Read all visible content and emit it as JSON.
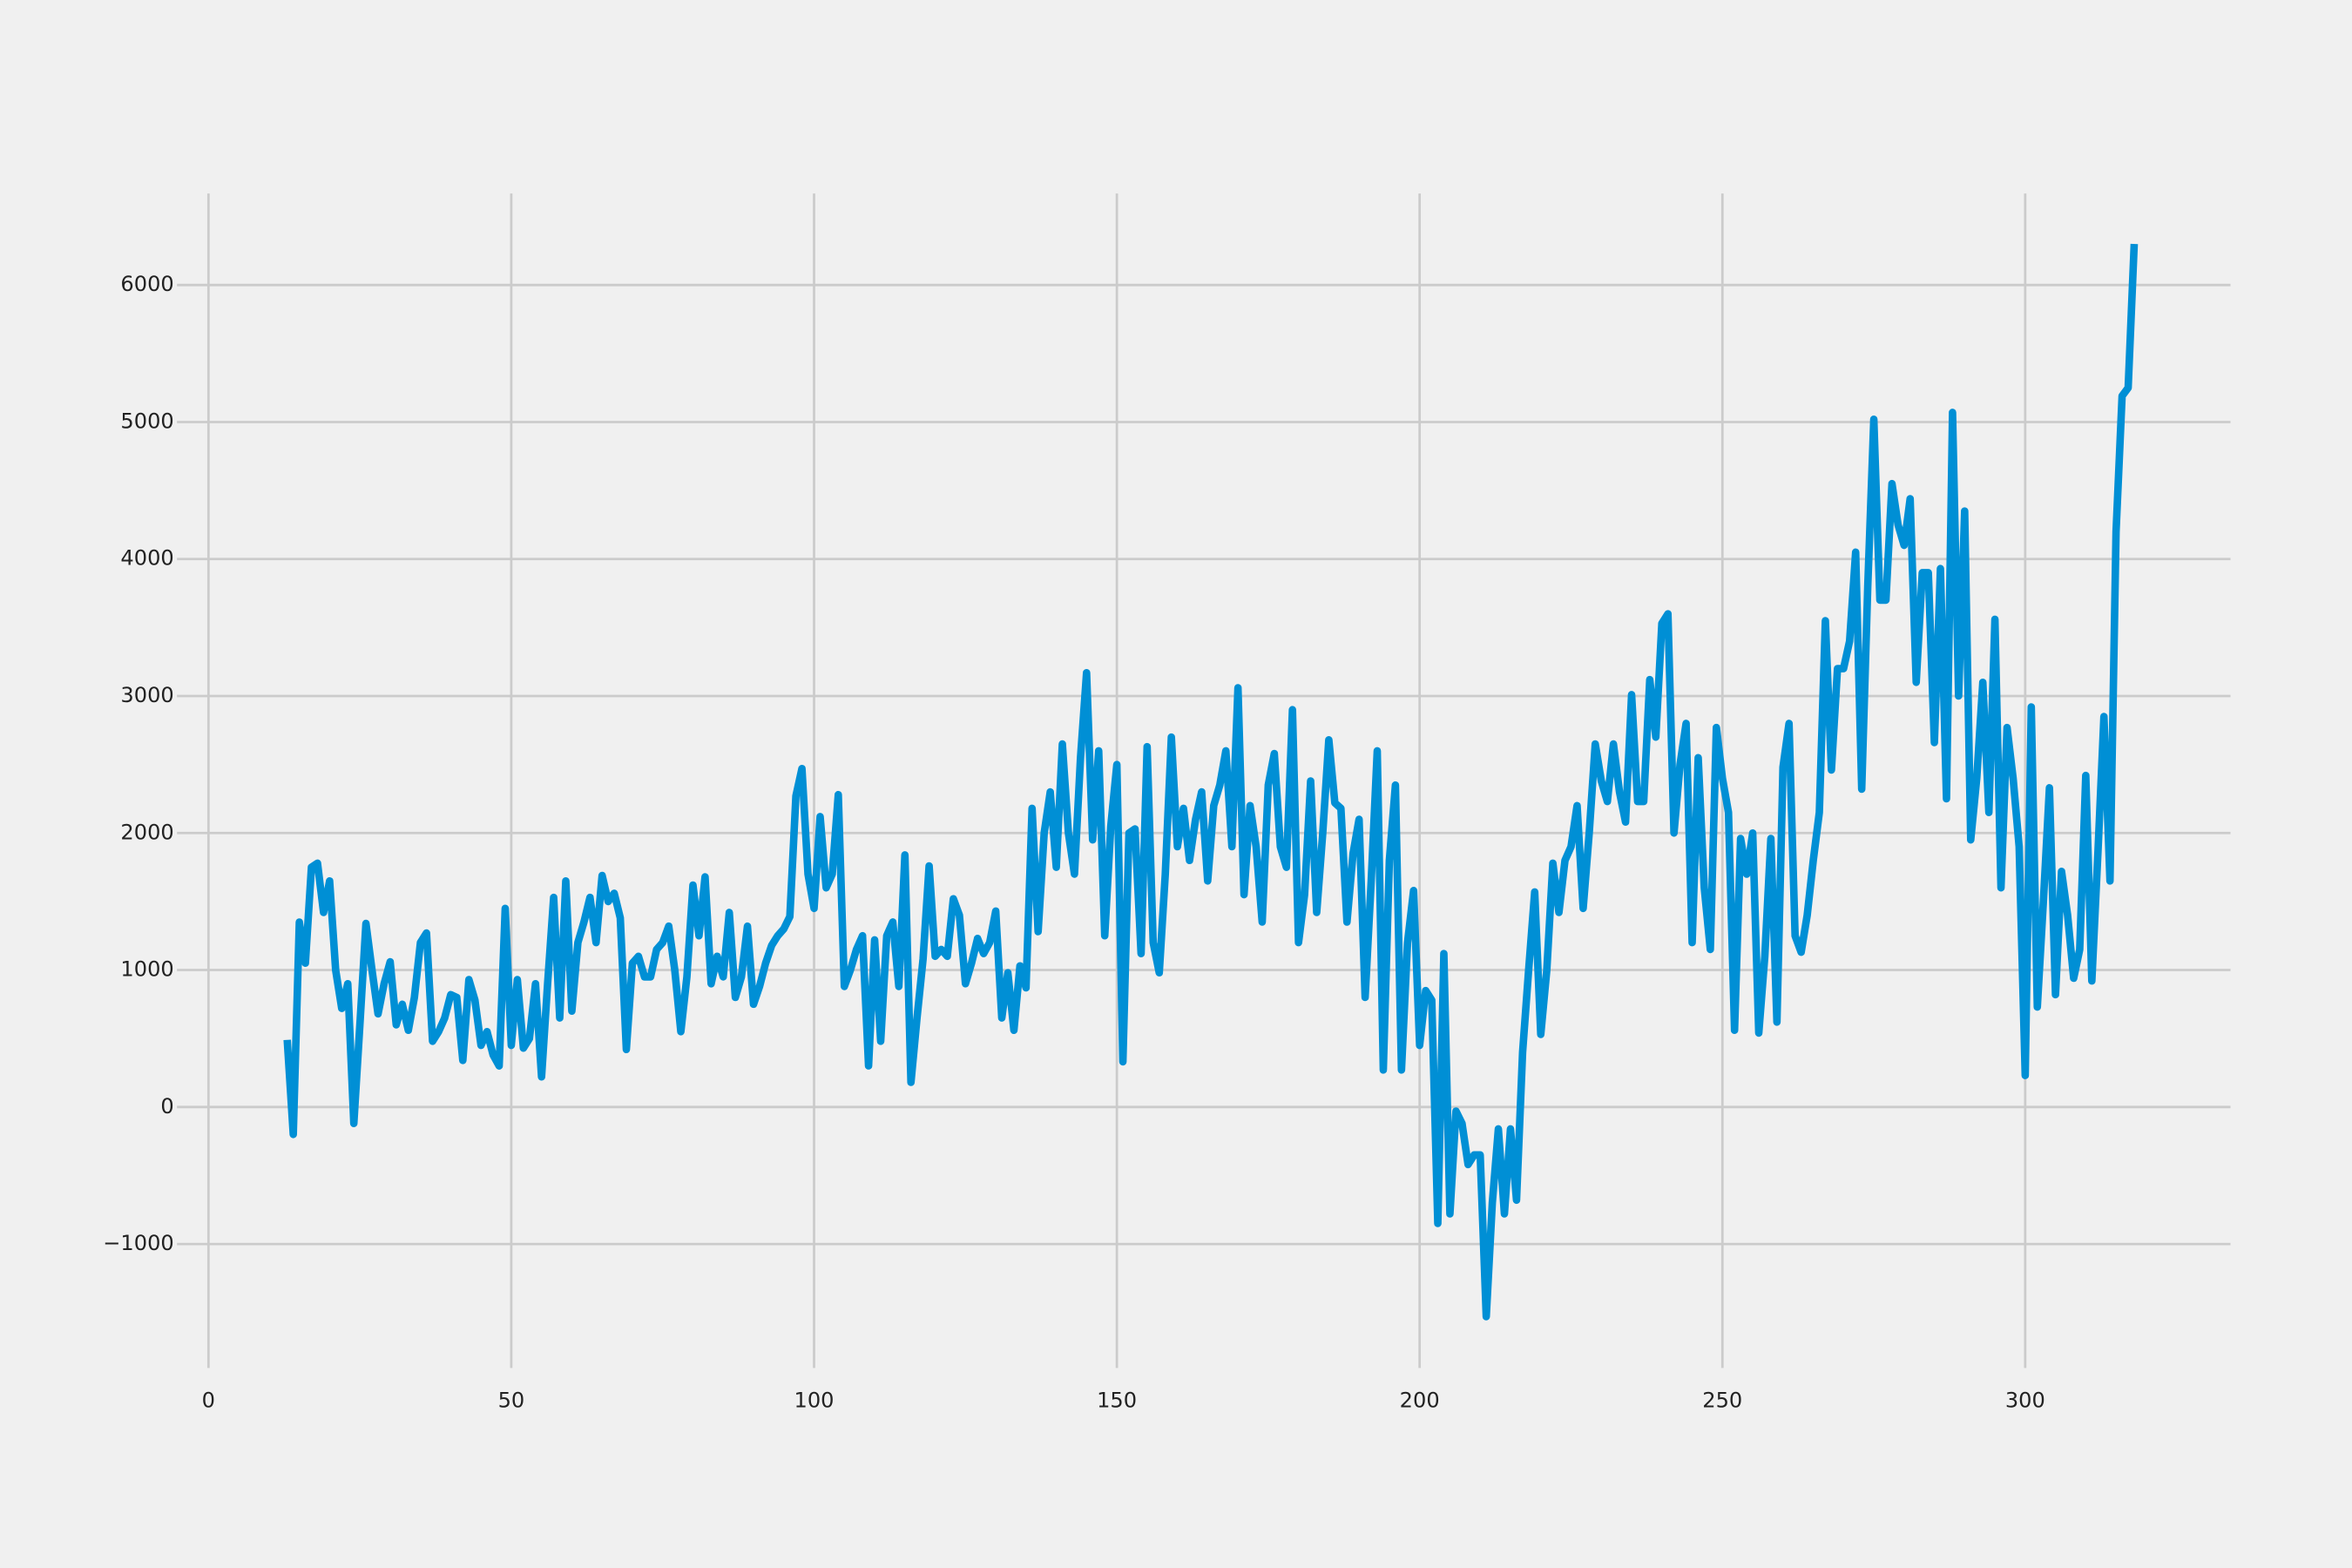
{
  "chart_data": {
    "type": "line",
    "color": "#008fd5",
    "grid": true,
    "xlim": [
      -5.2,
      333.9
    ],
    "ylim": [
      -1905,
      6668
    ],
    "xticks": [
      0,
      50,
      100,
      150,
      200,
      250,
      300
    ],
    "yticks": [
      {
        "value": -1000,
        "label": "−1000"
      },
      0,
      1000,
      2000,
      3000,
      4000,
      5000,
      6000
    ],
    "x": [
      13,
      14,
      15,
      16,
      17,
      18,
      19,
      20,
      21,
      22,
      23,
      24,
      25,
      26,
      27,
      28,
      29,
      30,
      31,
      32,
      33,
      34,
      35,
      36,
      37,
      38,
      39,
      40,
      41,
      42,
      43,
      44,
      45,
      46,
      47,
      48,
      49,
      50,
      51,
      52,
      53,
      54,
      55,
      56,
      57,
      58,
      59,
      60,
      61,
      62,
      63,
      64,
      65,
      66,
      67,
      68,
      69,
      70,
      71,
      72,
      73,
      74,
      75,
      76,
      77,
      78,
      79,
      80,
      81,
      82,
      83,
      84,
      85,
      86,
      87,
      88,
      89,
      90,
      91,
      92,
      93,
      94,
      95,
      96,
      97,
      98,
      99,
      100,
      101,
      102,
      103,
      104,
      105,
      106,
      107,
      108,
      109,
      110,
      111,
      112,
      113,
      114,
      115,
      116,
      117,
      118,
      119,
      120,
      121,
      122,
      123,
      124,
      125,
      126,
      127,
      128,
      129,
      130,
      131,
      132,
      133,
      134,
      135,
      136,
      137,
      138,
      139,
      140,
      141,
      142,
      143,
      144,
      145,
      146,
      147,
      148,
      149,
      150,
      151,
      152,
      153,
      154,
      155,
      156,
      157,
      158,
      159,
      160,
      161,
      162,
      163,
      164,
      165,
      166,
      167,
      168,
      169,
      170,
      171,
      172,
      173,
      174,
      175,
      176,
      177,
      178,
      179,
      180,
      181,
      182,
      183,
      184,
      185,
      186,
      187,
      188,
      189,
      190,
      191,
      192,
      193,
      194,
      195,
      196,
      197,
      198,
      199,
      200,
      201,
      202,
      203,
      204,
      205,
      206,
      207,
      208,
      209,
      210,
      211,
      212,
      213,
      214,
      215,
      216,
      217,
      218,
      219,
      220,
      221,
      222,
      223,
      224,
      225,
      226,
      227,
      228,
      229,
      230,
      231,
      232,
      233,
      234,
      235,
      236,
      237,
      238,
      239,
      240,
      241,
      242,
      243,
      244,
      245,
      246,
      247,
      248,
      249,
      250,
      251,
      252,
      253,
      254,
      255,
      256,
      257,
      258,
      259,
      260,
      261,
      262,
      263,
      264,
      265,
      266,
      267,
      268,
      269,
      270,
      271,
      272,
      273,
      274,
      275,
      276,
      277,
      278,
      279,
      280,
      281,
      282,
      283,
      284,
      285,
      286,
      287,
      288,
      289,
      290,
      291,
      292,
      293,
      294,
      295,
      296,
      297,
      298,
      299,
      300,
      301,
      302,
      303,
      304,
      305,
      306,
      307,
      308,
      309,
      310,
      311,
      312,
      313,
      314,
      315,
      316,
      317,
      318
    ],
    "values": [
      490,
      -200,
      1350,
      1050,
      1750,
      1780,
      1420,
      1650,
      1000,
      720,
      900,
      -120,
      600,
      1340,
      1000,
      680,
      900,
      1060,
      600,
      750,
      560,
      800,
      1200,
      1270,
      480,
      550,
      650,
      820,
      800,
      340,
      930,
      780,
      450,
      550,
      380,
      300,
      1450,
      450,
      930,
      430,
      500,
      900,
      220,
      900,
      1530,
      650,
      1650,
      700,
      1200,
      1350,
      1530,
      1200,
      1690,
      1500,
      1560,
      1380,
      420,
      1050,
      1100,
      950,
      950,
      1150,
      1200,
      1320,
      1000,
      550,
      950,
      1620,
      1250,
      1680,
      900,
      1100,
      950,
      1420,
      800,
      950,
      1320,
      750,
      880,
      1050,
      1180,
      1250,
      1300,
      1390,
      2270,
      2470,
      1700,
      1450,
      2120,
      1600,
      1700,
      2280,
      880,
      1000,
      1150,
      1250,
      300,
      1220,
      480,
      1250,
      1350,
      880,
      1840,
      180,
      650,
      1080,
      1760,
      1100,
      1150,
      1100,
      1520,
      1400,
      900,
      1050,
      1230,
      1120,
      1200,
      1430,
      650,
      980,
      560,
      1030,
      870,
      2180,
      1280,
      2000,
      2300,
      1750,
      2650,
      2000,
      1700,
      2550,
      3170,
      1950,
      2600,
      1250,
      2050,
      2500,
      330,
      2000,
      2030,
      1120,
      2630,
      1200,
      980,
      1700,
      2700,
      1900,
      2180,
      1800,
      2100,
      2300,
      1650,
      2200,
      2350,
      2600,
      1900,
      3060,
      1550,
      2200,
      1900,
      1350,
      2350,
      2580,
      1900,
      1750,
      2900,
      1200,
      1550,
      2380,
      1420,
      2000,
      2680,
      2220,
      2180,
      1350,
      1850,
      2100,
      800,
      1650,
      2600,
      270,
      1800,
      2350,
      270,
      1200,
      1580,
      450,
      850,
      780,
      -850,
      1120,
      -780,
      -30,
      -120,
      -420,
      -350,
      -350,
      -1530,
      -700,
      -160,
      -780,
      -160,
      -680,
      400,
      1000,
      1570,
      530,
      1000,
      1780,
      1420,
      1800,
      1900,
      2200,
      1450,
      2000,
      2650,
      2380,
      2230,
      2650,
      2300,
      2080,
      3010,
      2230,
      2230,
      3120,
      2700,
      3530,
      3600,
      2000,
      2500,
      2800,
      1200,
      2550,
      1600,
      1150,
      2770,
      2400,
      2150,
      560,
      1960,
      1700,
      2000,
      540,
      1100,
      1960,
      620,
      2480,
      2800,
      1250,
      1130,
      1400,
      1800,
      2150,
      3550,
      2460,
      3200,
      3200,
      3400,
      4050,
      2320,
      3800,
      5020,
      3700,
      3700,
      4550,
      4250,
      4100,
      4440,
      3100,
      3900,
      3900,
      2660,
      3930,
      2250,
      5070,
      3000,
      4350,
      1950,
      2400,
      3100,
      2150,
      3560,
      1600,
      2770,
      2400,
      1900,
      230,
      2920,
      730,
      1500,
      2330,
      820,
      1720,
      1400,
      940,
      1150,
      2420,
      920,
      1850,
      2850,
      1650,
      4200,
      5190,
      5250,
      6300
    ]
  }
}
